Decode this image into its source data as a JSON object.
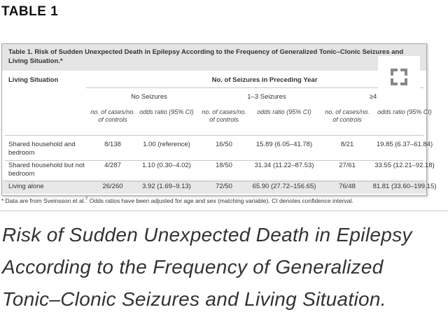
{
  "heading": "TABLE 1",
  "table": {
    "title_prefix": "Table 1.",
    "title": "Risk of Sudden Unexpected Death in Epilepsy According to the Frequency of Generalized Tonic–Clonic Seizures and Living Situation.*",
    "row_header": "Living Situation",
    "span_header": "No. of Seizures in Preceding Year",
    "groups": [
      "No Seizures",
      "1–3 Seizures",
      "≥4"
    ],
    "subheaders": [
      "no. of cases/no. of controls",
      "odds ratio (95% CI)",
      "no. of cases/no. of controls",
      "odds ratio (95% CI)",
      "no. of cases/no. of controls",
      "odds ratio (95% CI)"
    ],
    "rows": [
      [
        "Shared household and bedroom",
        "8/138",
        "1.00 (reference)",
        "16/50",
        "15.89 (6.05–41.78)",
        "8/21",
        "19.85 (6.37–61.84)"
      ],
      [
        "Shared household but not bedroom",
        "4/287",
        "1.10 (0.30–4.02)",
        "18/50",
        "31.34 (11.22–87.53)",
        "27/61",
        "33.55 (12.21–92.18)"
      ],
      [
        "Living alone",
        "26/260",
        "3.92 (1.69–9.13)",
        "72/50",
        "65.90 (27.72–156.65)",
        "76/48",
        "81.81 (33.60–199.15)"
      ]
    ],
    "footnote": {
      "before": "* Data are from Sveinsson et al.",
      "ref": "7",
      "after": "Odds ratios have been adjusted for age and sex (matching variable). CI denotes confidence interval."
    }
  },
  "caption": [
    "Risk of Sudden Unexpected Death in Epilepsy",
    "According to the Frequency of Generalized",
    "Tonic–Clonic Seizures and Living Situation."
  ]
}
